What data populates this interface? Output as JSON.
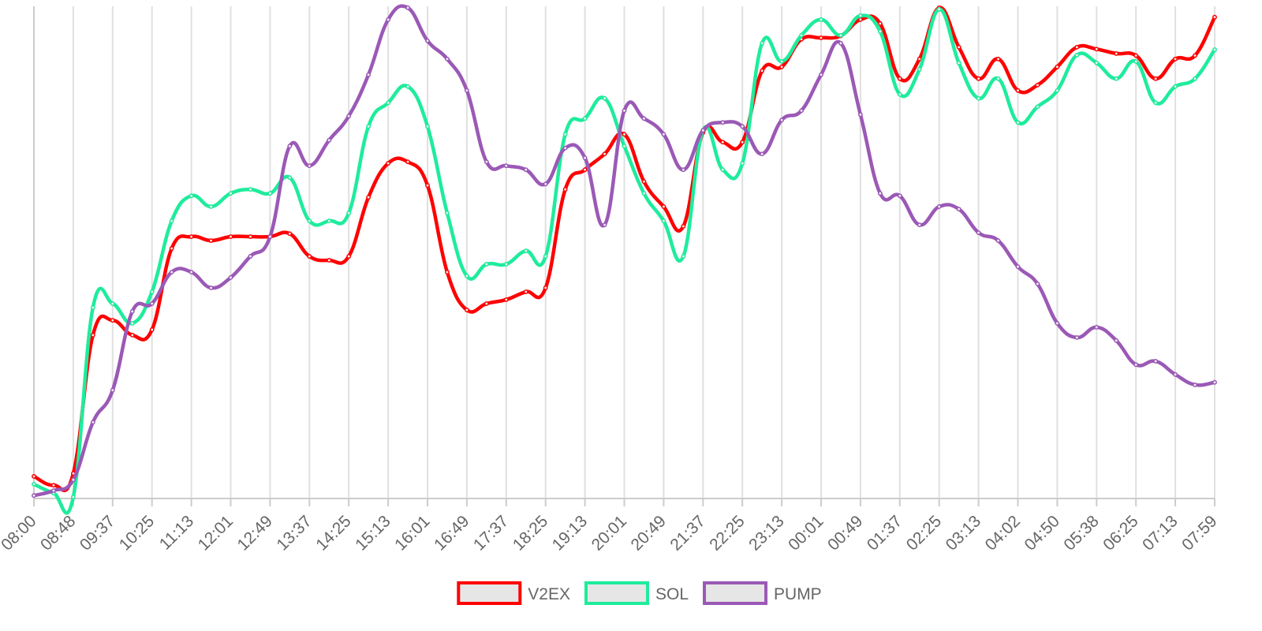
{
  "chart_data": {
    "type": "line",
    "categories": [
      "08:00",
      null,
      "08:48",
      null,
      "09:37",
      null,
      "10:25",
      null,
      "11:13",
      null,
      "12:01",
      null,
      "12:49",
      null,
      "13:37",
      null,
      "14:25",
      null,
      "15:13",
      null,
      "16:01",
      null,
      "16:49",
      null,
      "17:37",
      null,
      "18:25",
      null,
      "19:13",
      null,
      "20:01",
      null,
      "20:49",
      null,
      "21:37",
      null,
      "22:25",
      null,
      "23:13",
      null,
      "00:01",
      null,
      "00:49",
      null,
      "01:37",
      null,
      "02:25",
      null,
      "03:13",
      null,
      "04:02",
      null,
      "04:50",
      null,
      "05:38",
      null,
      "06:25",
      null,
      "07:13",
      null,
      "07:59"
    ],
    "ylim": [
      0,
      100
    ],
    "grid": true,
    "legend": "bottom",
    "series": [
      {
        "name": "V2EX",
        "color": "#ff0000",
        "values": [
          4.5,
          2.7,
          5.1,
          33.2,
          36.2,
          33.2,
          34.3,
          50.8,
          53.2,
          52.4,
          53.2,
          53.2,
          53.2,
          53.8,
          49.2,
          48.4,
          49.2,
          61.2,
          68.1,
          68.4,
          63.6,
          46,
          38.3,
          39.6,
          40.4,
          42,
          42.8,
          62.8,
          66.8,
          70,
          74,
          64.4,
          59.3,
          55.3,
          74.4,
          72.4,
          72.4,
          86.9,
          87.7,
          93.3,
          93.6,
          94,
          97.3,
          96.5,
          85.3,
          89.3,
          99.7,
          91.7,
          85.3,
          89.3,
          82.9,
          84,
          87.7,
          91.7,
          91.3,
          90.4,
          90,
          85.3,
          89.3,
          90,
          97.8
        ]
      },
      {
        "name": "SOL",
        "color": "#1eec9c",
        "values": [
          2.9,
          1.1,
          0.3,
          38.8,
          39.6,
          35.6,
          42,
          56.4,
          61.5,
          59.3,
          62,
          62.8,
          62,
          65.2,
          56.4,
          56.4,
          58,
          75.6,
          80.4,
          83.7,
          75.6,
          58,
          45.2,
          47.6,
          47.6,
          50.3,
          49.2,
          74,
          77.2,
          81.3,
          71.6,
          62,
          56.4,
          49.2,
          74.8,
          66.8,
          68.1,
          92.5,
          88.8,
          94.1,
          97.3,
          94.1,
          98.1,
          94.9,
          82.1,
          87.2,
          99.4,
          88.5,
          81.3,
          85.3,
          76.4,
          79.6,
          82.9,
          90.1,
          88.5,
          85.3,
          88.8,
          80.4,
          83.7,
          85.3,
          91.2
        ]
      },
      {
        "name": "PUMP",
        "color": "#9b59b6",
        "values": [
          0.6,
          1.6,
          3.8,
          15.5,
          22,
          38,
          39.6,
          46,
          46,
          42.8,
          44.9,
          49.2,
          53.2,
          71.6,
          67.6,
          72.8,
          77.7,
          86.1,
          97.3,
          99.7,
          93,
          89.3,
          82.9,
          68.4,
          67.6,
          66.8,
          63.9,
          71.2,
          69.2,
          55.6,
          78.8,
          77.2,
          74,
          66.8,
          74.8,
          76.4,
          75.6,
          70,
          76.9,
          78.8,
          86.1,
          92.5,
          78,
          62,
          61.5,
          55.6,
          59.3,
          58.8,
          54,
          52.4,
          47.1,
          43.6,
          35.6,
          32.7,
          34.8,
          32.1,
          27.2,
          27.9,
          25.2,
          23.1,
          23.6
        ]
      }
    ]
  }
}
